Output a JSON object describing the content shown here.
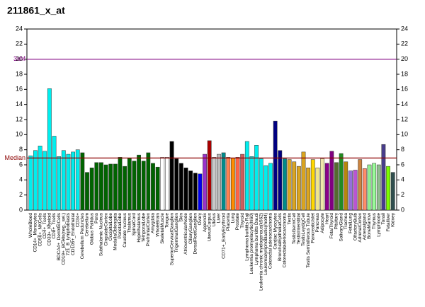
{
  "chart_data": {
    "type": "bar",
    "title": "211861_x_at",
    "categories": [
      "WholeBlood",
      "CD14+_Monocytes",
      "CD56+_NKCells",
      "CD4+_Tcells",
      "CD33+_Myeloid",
      "CD8+_Tcells",
      "BDCA4+_DentriticCells",
      "CD19+_BCells(neg._sel.)",
      "721_B_lymphoblasts",
      "CD105+_Endothelial",
      "CD34+",
      "Cerebellum Peduncles",
      "Cerebellum",
      "Globus Pallidus",
      "Pons",
      "Subthalamic Nucleus",
      "CingulateCortex",
      "OccipitalLobe",
      "MedullaOblongata",
      "ParietalLobe",
      "Caudate nucleus",
      "Thalamus",
      "SpinalCord",
      "Hypothalamus",
      "TemporalLobe",
      "PrefrontalCortex",
      "Amygdala",
      "WholeBrain",
      "SkeletalMuscle",
      "Tongue",
      "SuperiorCervicalGanglion",
      "TrigeminalGanglion",
      "Skin",
      "AtrioventricularNode",
      "CiliaryGanglion",
      "DorsalRootGanglion",
      "Ovary",
      "Appendix",
      "UterusCorpus",
      "Uterus",
      "Liver",
      "CD71+_EarlyErythroid",
      "Placenta",
      "Lung",
      "Prostate",
      "Thyroid",
      "Lymphoma burkitts Raji",
      "Leukemia promyelocytic(hl60)",
      "Lymphoma burkitts Daudi",
      "Leukemia chronic myelogenous(k562)",
      "Leukemialymphoblastic(molt4)",
      "Colorectal adenocarcinoma",
      "Cardiac Myocytes",
      "BronchialEpithelialCells",
      "Colorectaladenocarcinoma",
      "Testis",
      "TestisGermCell",
      "TestisInterstitial",
      "TestisLeydigCell",
      "Testis Seminiferous Tubule",
      "PancreaticIslet",
      "Pancreas",
      "Adipocyte",
      "Heart",
      "FetalThyroid",
      "Pituitary",
      "SalivaryGland",
      "Trachea",
      "FetalLung",
      "OlfactoryBulb",
      "AdrenalCortex",
      "Adrenalgland",
      "BoneMarrow",
      "Thymus",
      "Lymphnode",
      "Tonsil",
      "Fetalliver",
      "Kidney"
    ],
    "values": [
      7.2,
      7.9,
      8.5,
      7.8,
      16.1,
      9.8,
      7.1,
      7.9,
      7.4,
      7.7,
      8.0,
      7.6,
      5.0,
      5.6,
      6.3,
      6.3,
      6.0,
      6.1,
      6.1,
      7.0,
      5.8,
      6.9,
      6.5,
      7.3,
      6.5,
      7.6,
      6.2,
      5.7,
      7.0,
      7.0,
      9.1,
      6.8,
      6.2,
      5.6,
      5.2,
      4.9,
      4.8,
      7.4,
      9.2,
      7.0,
      7.4,
      7.6,
      7.0,
      6.9,
      7.0,
      7.4,
      9.1,
      7.1,
      8.6,
      6.8,
      5.9,
      6.2,
      11.8,
      7.9,
      6.8,
      6.7,
      6.4,
      5.8,
      7.7,
      5.6,
      6.7,
      5.6,
      6.8,
      6.2,
      7.8,
      6.3,
      7.5,
      6.4,
      5.2,
      5.3,
      6.7,
      5.5,
      6.0,
      6.2,
      6.0,
      8.7,
      5.8,
      5.0
    ],
    "colors": [
      "#00eeee",
      "#00eeee",
      "#00eeee",
      "#00eeee",
      "#00eeee",
      "#00eeee",
      "#00eeee",
      "#00eeee",
      "#00eeee",
      "#00eeee",
      "#00eeee",
      "#006400",
      "#006400",
      "#006400",
      "#006400",
      "#006400",
      "#006400",
      "#006400",
      "#006400",
      "#006400",
      "#006400",
      "#006400",
      "#006400",
      "#006400",
      "#006400",
      "#006400",
      "#006400",
      "#006400",
      "#ffffff",
      "#ffffff",
      "#000000",
      "#000000",
      "#000000",
      "#000000",
      "#000000",
      "#000000",
      "#0000ee",
      "#9932cc",
      "#aa0000",
      "#c8c8c8",
      "#bbbbbb",
      "#008b8b",
      "#ff7f50",
      "#ff8c00",
      "#ff6347",
      "#cd5c5c",
      "#00eeee",
      "#00eeee",
      "#00eeee",
      "#00eeee",
      "#00eeee",
      "#00eeee",
      "#000080",
      "#000080",
      "#008b8b",
      "#daa520",
      "#daa520",
      "#daa520",
      "#daa520",
      "#daa520",
      "#ffd700",
      "#f0e68c",
      "#eee8aa",
      "#8b008b",
      "#800080",
      "#556b2f",
      "#228b22",
      "#b8860b",
      "#9370db",
      "#ba55d3",
      "#cd853f",
      "#ff8c69",
      "#90ee90",
      "#98fb98",
      "#8fbc8f",
      "#483d8b",
      "#7cfc00",
      "#2f4f4f"
    ],
    "ylim": [
      0,
      24
    ],
    "yticks": [
      0,
      2,
      4,
      6,
      8,
      10,
      12,
      14,
      16,
      18,
      20,
      22,
      24
    ],
    "y2lim": [
      0,
      24
    ],
    "y2ticks": [
      0,
      2,
      4,
      6,
      8,
      10,
      12,
      14,
      16,
      18,
      20,
      22,
      24
    ],
    "reference_lines": [
      {
        "label": "3xM",
        "value": 20,
        "color": "#800080"
      },
      {
        "label": "Median",
        "value": 6.9,
        "color": "#8b0000"
      }
    ]
  }
}
